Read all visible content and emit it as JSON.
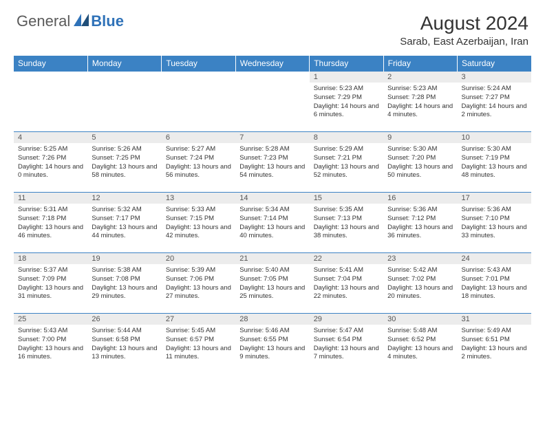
{
  "logo": {
    "text1": "General",
    "text2": "Blue"
  },
  "title": "August 2024",
  "location": "Sarab, East Azerbaijan, Iran",
  "colors": {
    "header_bg": "#3b82c4",
    "header_fg": "#ffffff",
    "daynum_bg": "#ececec",
    "border": "#3b82c4",
    "logo_gray": "#5a5a5a",
    "logo_blue": "#2f72b8"
  },
  "weekdays": [
    "Sunday",
    "Monday",
    "Tuesday",
    "Wednesday",
    "Thursday",
    "Friday",
    "Saturday"
  ],
  "weeks": [
    [
      {
        "empty": true
      },
      {
        "empty": true
      },
      {
        "empty": true
      },
      {
        "empty": true
      },
      {
        "n": "1",
        "sr": "Sunrise: 5:23 AM",
        "ss": "Sunset: 7:29 PM",
        "dl": "Daylight: 14 hours and 6 minutes."
      },
      {
        "n": "2",
        "sr": "Sunrise: 5:23 AM",
        "ss": "Sunset: 7:28 PM",
        "dl": "Daylight: 14 hours and 4 minutes."
      },
      {
        "n": "3",
        "sr": "Sunrise: 5:24 AM",
        "ss": "Sunset: 7:27 PM",
        "dl": "Daylight: 14 hours and 2 minutes."
      }
    ],
    [
      {
        "n": "4",
        "sr": "Sunrise: 5:25 AM",
        "ss": "Sunset: 7:26 PM",
        "dl": "Daylight: 14 hours and 0 minutes."
      },
      {
        "n": "5",
        "sr": "Sunrise: 5:26 AM",
        "ss": "Sunset: 7:25 PM",
        "dl": "Daylight: 13 hours and 58 minutes."
      },
      {
        "n": "6",
        "sr": "Sunrise: 5:27 AM",
        "ss": "Sunset: 7:24 PM",
        "dl": "Daylight: 13 hours and 56 minutes."
      },
      {
        "n": "7",
        "sr": "Sunrise: 5:28 AM",
        "ss": "Sunset: 7:23 PM",
        "dl": "Daylight: 13 hours and 54 minutes."
      },
      {
        "n": "8",
        "sr": "Sunrise: 5:29 AM",
        "ss": "Sunset: 7:21 PM",
        "dl": "Daylight: 13 hours and 52 minutes."
      },
      {
        "n": "9",
        "sr": "Sunrise: 5:30 AM",
        "ss": "Sunset: 7:20 PM",
        "dl": "Daylight: 13 hours and 50 minutes."
      },
      {
        "n": "10",
        "sr": "Sunrise: 5:30 AM",
        "ss": "Sunset: 7:19 PM",
        "dl": "Daylight: 13 hours and 48 minutes."
      }
    ],
    [
      {
        "n": "11",
        "sr": "Sunrise: 5:31 AM",
        "ss": "Sunset: 7:18 PM",
        "dl": "Daylight: 13 hours and 46 minutes."
      },
      {
        "n": "12",
        "sr": "Sunrise: 5:32 AM",
        "ss": "Sunset: 7:17 PM",
        "dl": "Daylight: 13 hours and 44 minutes."
      },
      {
        "n": "13",
        "sr": "Sunrise: 5:33 AM",
        "ss": "Sunset: 7:15 PM",
        "dl": "Daylight: 13 hours and 42 minutes."
      },
      {
        "n": "14",
        "sr": "Sunrise: 5:34 AM",
        "ss": "Sunset: 7:14 PM",
        "dl": "Daylight: 13 hours and 40 minutes."
      },
      {
        "n": "15",
        "sr": "Sunrise: 5:35 AM",
        "ss": "Sunset: 7:13 PM",
        "dl": "Daylight: 13 hours and 38 minutes."
      },
      {
        "n": "16",
        "sr": "Sunrise: 5:36 AM",
        "ss": "Sunset: 7:12 PM",
        "dl": "Daylight: 13 hours and 36 minutes."
      },
      {
        "n": "17",
        "sr": "Sunrise: 5:36 AM",
        "ss": "Sunset: 7:10 PM",
        "dl": "Daylight: 13 hours and 33 minutes."
      }
    ],
    [
      {
        "n": "18",
        "sr": "Sunrise: 5:37 AM",
        "ss": "Sunset: 7:09 PM",
        "dl": "Daylight: 13 hours and 31 minutes."
      },
      {
        "n": "19",
        "sr": "Sunrise: 5:38 AM",
        "ss": "Sunset: 7:08 PM",
        "dl": "Daylight: 13 hours and 29 minutes."
      },
      {
        "n": "20",
        "sr": "Sunrise: 5:39 AM",
        "ss": "Sunset: 7:06 PM",
        "dl": "Daylight: 13 hours and 27 minutes."
      },
      {
        "n": "21",
        "sr": "Sunrise: 5:40 AM",
        "ss": "Sunset: 7:05 PM",
        "dl": "Daylight: 13 hours and 25 minutes."
      },
      {
        "n": "22",
        "sr": "Sunrise: 5:41 AM",
        "ss": "Sunset: 7:04 PM",
        "dl": "Daylight: 13 hours and 22 minutes."
      },
      {
        "n": "23",
        "sr": "Sunrise: 5:42 AM",
        "ss": "Sunset: 7:02 PM",
        "dl": "Daylight: 13 hours and 20 minutes."
      },
      {
        "n": "24",
        "sr": "Sunrise: 5:43 AM",
        "ss": "Sunset: 7:01 PM",
        "dl": "Daylight: 13 hours and 18 minutes."
      }
    ],
    [
      {
        "n": "25",
        "sr": "Sunrise: 5:43 AM",
        "ss": "Sunset: 7:00 PM",
        "dl": "Daylight: 13 hours and 16 minutes."
      },
      {
        "n": "26",
        "sr": "Sunrise: 5:44 AM",
        "ss": "Sunset: 6:58 PM",
        "dl": "Daylight: 13 hours and 13 minutes."
      },
      {
        "n": "27",
        "sr": "Sunrise: 5:45 AM",
        "ss": "Sunset: 6:57 PM",
        "dl": "Daylight: 13 hours and 11 minutes."
      },
      {
        "n": "28",
        "sr": "Sunrise: 5:46 AM",
        "ss": "Sunset: 6:55 PM",
        "dl": "Daylight: 13 hours and 9 minutes."
      },
      {
        "n": "29",
        "sr": "Sunrise: 5:47 AM",
        "ss": "Sunset: 6:54 PM",
        "dl": "Daylight: 13 hours and 7 minutes."
      },
      {
        "n": "30",
        "sr": "Sunrise: 5:48 AM",
        "ss": "Sunset: 6:52 PM",
        "dl": "Daylight: 13 hours and 4 minutes."
      },
      {
        "n": "31",
        "sr": "Sunrise: 5:49 AM",
        "ss": "Sunset: 6:51 PM",
        "dl": "Daylight: 13 hours and 2 minutes."
      }
    ]
  ]
}
